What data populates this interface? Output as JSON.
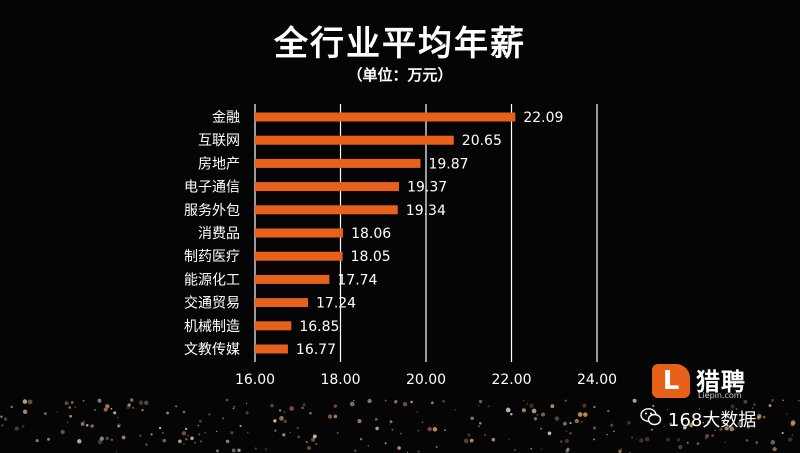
{
  "title": "全行业平均年薪",
  "subtitle": "（单位：万元）",
  "logo": {
    "name": "猎聘",
    "domain": "Liepin.com",
    "badge": "L"
  },
  "watermark": {
    "text": "168大数据"
  },
  "colors": {
    "bar": "#e8611a",
    "background": "#050505",
    "grid": "#ffffff",
    "text": "#ffffff"
  },
  "chart_data": {
    "type": "bar",
    "orientation": "horizontal",
    "categories": [
      "金融",
      "互联网",
      "房地产",
      "电子通信",
      "服务外包",
      "消费品",
      "制药医疗",
      "能源化工",
      "交通贸易",
      "机械制造",
      "文教传媒"
    ],
    "values": [
      22.09,
      20.65,
      19.87,
      19.37,
      19.34,
      18.06,
      18.05,
      17.74,
      17.24,
      16.85,
      16.77
    ],
    "value_labels": [
      "22.09",
      "20.65",
      "19.87",
      "19.37",
      "19.34",
      "18.06",
      "18.05",
      "17.74",
      "17.24",
      "16.85",
      "16.77"
    ],
    "xlim": [
      16,
      24
    ],
    "xticks": [
      16,
      18,
      20,
      22,
      24
    ],
    "xtick_labels": [
      "16.00",
      "18.00",
      "20.00",
      "22.00",
      "24.00"
    ],
    "grid": true
  }
}
